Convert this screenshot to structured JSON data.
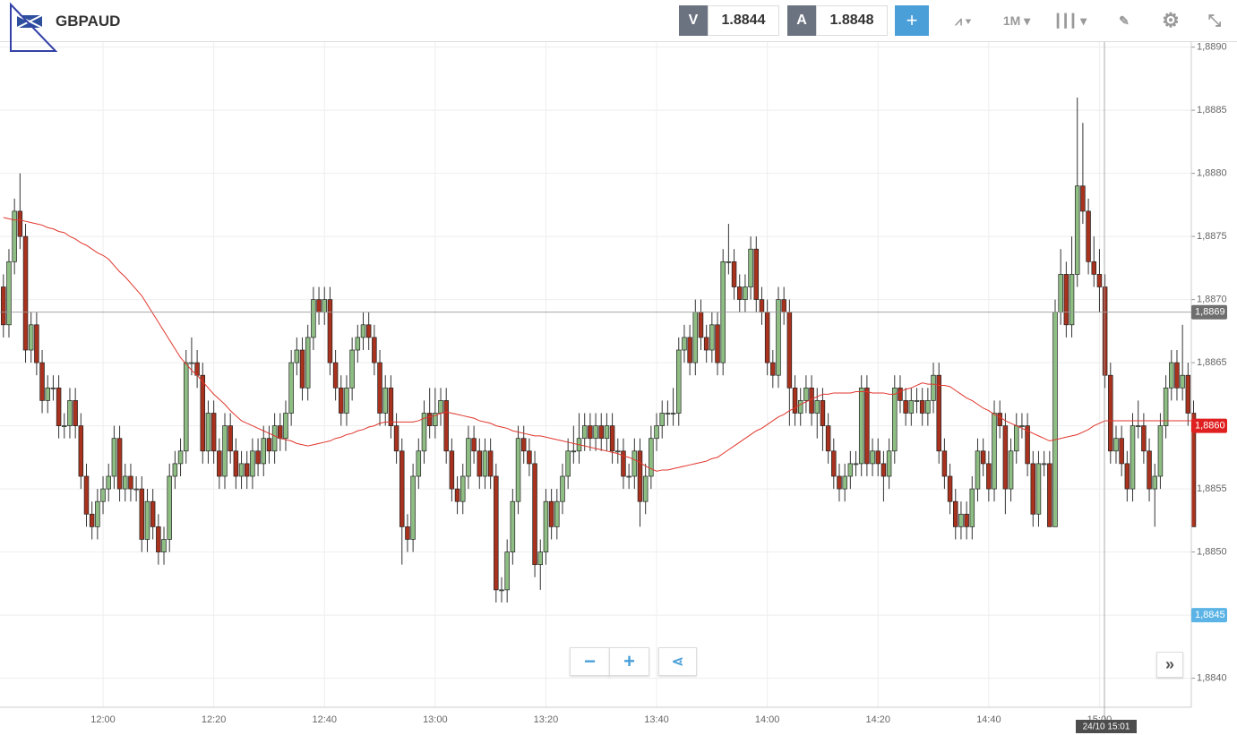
{
  "toolbar": {
    "symbol": "GBPAUD",
    "bid_label": "V",
    "bid": 1.8844,
    "ask_label": "A",
    "ask": 1.8848,
    "timeframe": "1M"
  },
  "chart_data": {
    "type": "candlestick",
    "grid": true,
    "up_color": "#8fbe84",
    "down_color": "#a8321e",
    "categories": [
      null,
      null,
      null,
      null,
      null,
      null,
      null,
      null,
      null,
      null,
      null,
      null,
      null,
      null,
      null,
      null,
      null,
      null,
      "12:00",
      null,
      null,
      null,
      null,
      null,
      null,
      null,
      null,
      null,
      null,
      null,
      null,
      null,
      null,
      null,
      null,
      null,
      null,
      null,
      "12:20",
      null,
      null,
      null,
      null,
      null,
      null,
      null,
      null,
      null,
      null,
      null,
      null,
      null,
      null,
      null,
      null,
      null,
      null,
      null,
      "12:40",
      null,
      null,
      null,
      null,
      null,
      null,
      null,
      null,
      null,
      null,
      null,
      null,
      null,
      null,
      null,
      null,
      null,
      null,
      null,
      "13:00",
      null,
      null,
      null,
      null,
      null,
      null,
      null,
      null,
      null,
      null,
      null,
      null,
      null,
      null,
      null,
      null,
      null,
      null,
      null,
      "13:20",
      null,
      null,
      null,
      null,
      null,
      null,
      null,
      null,
      null,
      null,
      null,
      null,
      null,
      null,
      null,
      null,
      null,
      null,
      null,
      "13:40",
      null,
      null,
      null,
      null,
      null,
      null,
      null,
      null,
      null,
      null,
      null,
      null,
      null,
      null,
      null,
      null,
      null,
      null,
      null,
      "14:00",
      null,
      null,
      null,
      null,
      null,
      null,
      null,
      null,
      null,
      null,
      null,
      null,
      null,
      null,
      null,
      null,
      null,
      null,
      null,
      "14:20",
      null,
      null,
      null,
      null,
      null,
      null,
      null,
      null,
      null,
      null,
      null,
      null,
      null,
      null,
      null,
      null,
      null,
      null,
      null,
      "14:40",
      null,
      null,
      null,
      null,
      null,
      null,
      null,
      null,
      null,
      null,
      null,
      null,
      null,
      null,
      null,
      null,
      null,
      null,
      null,
      "15:00",
      null,
      null,
      null,
      null,
      null,
      null,
      null,
      null,
      null,
      null,
      null,
      null,
      null,
      null,
      null,
      null,
      null
    ],
    "open": [
      1.8871,
      1.8868,
      1.8873,
      1.8877,
      1.8875,
      1.8866,
      1.8868,
      1.8865,
      1.8862,
      1.8863,
      1.8863,
      1.886,
      1.886,
      1.8862,
      1.886,
      1.8856,
      1.8853,
      1.8852,
      1.8854,
      1.8855,
      1.8856,
      1.8859,
      1.8855,
      1.8856,
      1.8855,
      1.8855,
      1.8851,
      1.8854,
      1.8852,
      1.885,
      1.8851,
      1.8856,
      1.8857,
      1.8858,
      1.8865,
      1.8865,
      1.8864,
      1.8858,
      1.8861,
      1.8858,
      1.8856,
      1.886,
      1.8858,
      1.8856,
      1.8857,
      1.8856,
      1.8858,
      1.8857,
      1.8859,
      1.8858,
      1.886,
      1.8859,
      1.8861,
      1.8865,
      1.8866,
      1.8863,
      1.8867,
      1.887,
      1.8869,
      1.887,
      1.8865,
      1.8863,
      1.8861,
      1.8863,
      1.8866,
      1.8867,
      1.8868,
      1.8867,
      1.8865,
      1.8861,
      1.8863,
      1.886,
      1.8858,
      1.8852,
      1.8851,
      1.8856,
      1.8858,
      1.8861,
      1.886,
      1.8861,
      1.8862,
      1.8858,
      1.8855,
      1.8854,
      1.8856,
      1.8859,
      1.8858,
      1.8856,
      1.8858,
      1.8856,
      1.8847,
      1.8847,
      1.885,
      1.8854,
      1.8859,
      1.8858,
      1.8857,
      1.8849,
      1.885,
      1.8854,
      1.8852,
      1.8854,
      1.8856,
      1.8858,
      1.8858,
      1.8859,
      1.886,
      1.8859,
      1.886,
      1.8859,
      1.886,
      1.8858,
      1.8858,
      1.8856,
      1.8856,
      1.8858,
      1.8854,
      1.8856,
      1.8859,
      1.886,
      1.8861,
      1.8861,
      1.8861,
      1.8866,
      1.8867,
      1.8865,
      1.8869,
      1.8867,
      1.8866,
      1.8868,
      1.8865,
      1.8873,
      1.8873,
      1.8871,
      1.887,
      1.8871,
      1.8874,
      1.887,
      1.8869,
      1.8865,
      1.8864,
      1.887,
      1.8869,
      1.8863,
      1.8861,
      1.8862,
      1.8863,
      1.8861,
      1.8862,
      1.886,
      1.8858,
      1.8856,
      1.8855,
      1.8856,
      1.8857,
      1.8857,
      1.8863,
      1.8857,
      1.8858,
      1.8857,
      1.8856,
      1.8858,
      1.8863,
      1.8862,
      1.8861,
      1.8862,
      1.8862,
      1.8861,
      1.8862,
      1.8864,
      1.8858,
      1.8856,
      1.8854,
      1.8852,
      1.8853,
      1.8852,
      1.8855,
      1.8858,
      1.8857,
      1.8855,
      1.8861,
      1.886,
      1.8855,
      1.8858,
      1.886,
      1.886,
      1.8857,
      1.8853,
      1.8857,
      1.8857,
      1.8852,
      1.8869,
      1.8872,
      1.8868,
      1.8872,
      1.8879,
      1.8877,
      1.8873,
      1.8872,
      1.8871,
      1.8864,
      1.8858,
      1.8859,
      1.8857,
      1.8855,
      1.886,
      1.886,
      1.8858,
      1.8855,
      1.8856,
      1.886,
      1.8863,
      1.8865,
      1.8863,
      1.8864,
      1.8861
    ],
    "high": [
      1.8872,
      1.8874,
      1.8878,
      1.888,
      1.8876,
      1.8869,
      1.8869,
      1.8866,
      1.8864,
      1.8864,
      1.8864,
      1.8861,
      1.8863,
      1.8863,
      1.8861,
      1.8857,
      1.8854,
      1.8855,
      1.8856,
      1.8857,
      1.886,
      1.886,
      1.8857,
      1.8857,
      1.8856,
      1.8856,
      1.8855,
      1.8855,
      1.8853,
      1.8852,
      1.8857,
      1.8858,
      1.8859,
      1.8866,
      1.8867,
      1.8866,
      1.8865,
      1.8862,
      1.8862,
      1.8859,
      1.8861,
      1.8861,
      1.8859,
      1.8858,
      1.8858,
      1.8859,
      1.8859,
      1.886,
      1.886,
      1.8861,
      1.8861,
      1.8862,
      1.8866,
      1.8867,
      1.8867,
      1.8868,
      1.8871,
      1.8871,
      1.8871,
      1.8871,
      1.8866,
      1.8864,
      1.8864,
      1.8867,
      1.8868,
      1.8869,
      1.8869,
      1.8868,
      1.8866,
      1.8864,
      1.8864,
      1.8861,
      1.8859,
      1.8853,
      1.8857,
      1.8859,
      1.8862,
      1.8863,
      1.8863,
      1.8863,
      1.8863,
      1.8859,
      1.8856,
      1.8857,
      1.886,
      1.886,
      1.8859,
      1.8859,
      1.8859,
      1.8857,
      1.8848,
      1.8851,
      1.8855,
      1.886,
      1.886,
      1.8859,
      1.8858,
      1.8851,
      1.8855,
      1.8855,
      1.8855,
      1.8857,
      1.8859,
      1.886,
      1.8861,
      1.8861,
      1.8861,
      1.8861,
      1.8861,
      1.8861,
      1.8861,
      1.8859,
      1.8859,
      1.8857,
      1.8859,
      1.8859,
      1.8857,
      1.886,
      1.8861,
      1.8862,
      1.8862,
      1.8863,
      1.8867,
      1.8868,
      1.8868,
      1.887,
      1.887,
      1.8868,
      1.8869,
      1.8869,
      1.8874,
      1.8876,
      1.8874,
      1.8872,
      1.8872,
      1.8875,
      1.8875,
      1.8871,
      1.887,
      1.8866,
      1.8871,
      1.8871,
      1.887,
      1.8864,
      1.8863,
      1.8864,
      1.8864,
      1.8863,
      1.8863,
      1.8861,
      1.8859,
      1.8857,
      1.8857,
      1.8858,
      1.8858,
      1.8864,
      1.8864,
      1.8859,
      1.8859,
      1.8858,
      1.8859,
      1.8864,
      1.8864,
      1.8863,
      1.8863,
      1.8863,
      1.8863,
      1.8863,
      1.8865,
      1.8865,
      1.8859,
      1.8857,
      1.8855,
      1.8854,
      1.8854,
      1.8856,
      1.8859,
      1.8859,
      1.8858,
      1.8862,
      1.8862,
      1.8861,
      1.8859,
      1.8861,
      1.8861,
      1.8861,
      1.8858,
      1.8858,
      1.8858,
      1.8858,
      1.887,
      1.8874,
      1.8873,
      1.8875,
      1.8886,
      1.8884,
      1.8878,
      1.8875,
      1.8874,
      1.8872,
      1.8865,
      1.886,
      1.886,
      1.8858,
      1.8861,
      1.8862,
      1.8861,
      1.8859,
      1.8857,
      1.8861,
      1.8864,
      1.8866,
      1.8866,
      1.8868,
      1.8865,
      1.8862
    ],
    "low": [
      1.8867,
      1.8867,
      1.8872,
      1.8874,
      1.8865,
      1.8865,
      1.8864,
      1.8861,
      1.8861,
      1.8862,
      1.8859,
      1.8859,
      1.8859,
      1.8859,
      1.8855,
      1.8852,
      1.8851,
      1.8851,
      1.8853,
      1.8854,
      1.8855,
      1.8854,
      1.8854,
      1.8854,
      1.8854,
      1.885,
      1.885,
      1.8851,
      1.8849,
      1.8849,
      1.885,
      1.8855,
      1.8856,
      1.8857,
      1.8864,
      1.8863,
      1.8857,
      1.8857,
      1.8857,
      1.8855,
      1.8855,
      1.8857,
      1.8855,
      1.8855,
      1.8855,
      1.8855,
      1.8856,
      1.8856,
      1.8857,
      1.8857,
      1.8858,
      1.8858,
      1.886,
      1.8864,
      1.8862,
      1.8862,
      1.8866,
      1.8868,
      1.8868,
      1.8864,
      1.8862,
      1.886,
      1.886,
      1.8862,
      1.8865,
      1.8866,
      1.8866,
      1.8864,
      1.886,
      1.886,
      1.8859,
      1.8857,
      1.8849,
      1.885,
      1.885,
      1.8855,
      1.8857,
      1.8859,
      1.8859,
      1.886,
      1.8857,
      1.8854,
      1.8853,
      1.8853,
      1.8855,
      1.8857,
      1.8855,
      1.8855,
      1.8855,
      1.8846,
      1.8846,
      1.8846,
      1.8849,
      1.8853,
      1.8857,
      1.8856,
      1.8848,
      1.8847,
      1.8849,
      1.8851,
      1.8851,
      1.8853,
      1.8855,
      1.8857,
      1.8857,
      1.8858,
      1.8858,
      1.8858,
      1.8858,
      1.8858,
      1.8857,
      1.8857,
      1.8855,
      1.8855,
      1.8855,
      1.8852,
      1.8853,
      1.8855,
      1.8858,
      1.8859,
      1.886,
      1.886,
      1.886,
      1.8865,
      1.8864,
      1.8864,
      1.8866,
      1.8865,
      1.8865,
      1.8864,
      1.8864,
      1.8872,
      1.887,
      1.8869,
      1.8869,
      1.887,
      1.8869,
      1.8868,
      1.8864,
      1.8863,
      1.8863,
      1.8868,
      1.886,
      1.886,
      1.886,
      1.8861,
      1.886,
      1.8859,
      1.8858,
      1.8857,
      1.8855,
      1.8854,
      1.8854,
      1.8855,
      1.8856,
      1.8856,
      1.8856,
      1.8856,
      1.8856,
      1.8854,
      1.8855,
      1.8857,
      1.8861,
      1.886,
      1.886,
      1.8861,
      1.886,
      1.886,
      1.8861,
      1.8857,
      1.8855,
      1.8853,
      1.8851,
      1.8851,
      1.8851,
      1.8851,
      1.8854,
      1.8856,
      1.8854,
      1.8854,
      1.8859,
      1.8853,
      1.8854,
      1.8857,
      1.8859,
      1.8856,
      1.8852,
      1.8852,
      1.8856,
      1.8852,
      1.8852,
      1.8868,
      1.8867,
      1.8867,
      1.8871,
      1.8876,
      1.8872,
      1.8871,
      1.8869,
      1.8863,
      1.8857,
      1.8857,
      1.8856,
      1.8854,
      1.8854,
      1.8859,
      1.8857,
      1.8854,
      1.8852,
      1.8855,
      1.8859,
      1.8862,
      1.8862,
      1.8862,
      1.886,
      1.8852
    ],
    "close": [
      1.8868,
      1.8873,
      1.8877,
      1.8875,
      1.8866,
      1.8868,
      1.8865,
      1.8862,
      1.8863,
      1.8863,
      1.886,
      1.886,
      1.8862,
      1.886,
      1.8856,
      1.8853,
      1.8852,
      1.8854,
      1.8855,
      1.8856,
      1.8859,
      1.8855,
      1.8856,
      1.8855,
      1.8855,
      1.8851,
      1.8854,
      1.8852,
      1.885,
      1.8851,
      1.8856,
      1.8857,
      1.8858,
      1.8865,
      1.8865,
      1.8864,
      1.8858,
      1.8861,
      1.8858,
      1.8856,
      1.886,
      1.8858,
      1.8856,
      1.8857,
      1.8856,
      1.8858,
      1.8857,
      1.8859,
      1.8858,
      1.886,
      1.8859,
      1.8861,
      1.8865,
      1.8866,
      1.8863,
      1.8867,
      1.887,
      1.8869,
      1.887,
      1.8865,
      1.8863,
      1.8861,
      1.8863,
      1.8866,
      1.8867,
      1.8868,
      1.8867,
      1.8865,
      1.8861,
      1.8863,
      1.886,
      1.8858,
      1.8852,
      1.8851,
      1.8856,
      1.8858,
      1.8861,
      1.886,
      1.8861,
      1.8862,
      1.8858,
      1.8855,
      1.8854,
      1.8856,
      1.8859,
      1.8858,
      1.8856,
      1.8858,
      1.8856,
      1.8847,
      1.8847,
      1.885,
      1.8854,
      1.8859,
      1.8858,
      1.8857,
      1.8849,
      1.885,
      1.8854,
      1.8852,
      1.8854,
      1.8856,
      1.8858,
      1.8858,
      1.8859,
      1.886,
      1.8859,
      1.886,
      1.8859,
      1.886,
      1.8858,
      1.8858,
      1.8856,
      1.8856,
      1.8858,
      1.8854,
      1.8856,
      1.8859,
      1.886,
      1.8861,
      1.8861,
      1.8861,
      1.8866,
      1.8867,
      1.8865,
      1.8869,
      1.8867,
      1.8866,
      1.8868,
      1.8865,
      1.8873,
      1.8873,
      1.8871,
      1.887,
      1.8871,
      1.8874,
      1.887,
      1.8869,
      1.8865,
      1.8864,
      1.887,
      1.8869,
      1.8863,
      1.8861,
      1.8862,
      1.8863,
      1.8861,
      1.8862,
      1.886,
      1.8858,
      1.8856,
      1.8855,
      1.8856,
      1.8857,
      1.8857,
      1.8863,
      1.8857,
      1.8858,
      1.8857,
      1.8856,
      1.8858,
      1.8863,
      1.8862,
      1.8861,
      1.8862,
      1.8862,
      1.8861,
      1.8862,
      1.8864,
      1.8858,
      1.8856,
      1.8854,
      1.8852,
      1.8853,
      1.8852,
      1.8855,
      1.8858,
      1.8857,
      1.8855,
      1.8861,
      1.886,
      1.8855,
      1.8858,
      1.886,
      1.886,
      1.8857,
      1.8853,
      1.8857,
      1.8857,
      1.8852,
      1.8869,
      1.8872,
      1.8868,
      1.8872,
      1.8879,
      1.8877,
      1.8873,
      1.8872,
      1.8871,
      1.8864,
      1.8858,
      1.8859,
      1.8857,
      1.8855,
      1.886,
      1.886,
      1.8858,
      1.8855,
      1.8856,
      1.886,
      1.8863,
      1.8865,
      1.8863,
      1.8864,
      1.8861,
      1.8852
    ],
    "ma": {
      "color": "#e0362c",
      "values": [
        1.88765,
        1.88764,
        1.88763,
        1.88763,
        1.88762,
        1.88761,
        1.8876,
        1.88759,
        1.88757,
        1.88756,
        1.88754,
        1.88753,
        1.8875,
        1.88748,
        1.88745,
        1.88743,
        1.8874,
        1.88737,
        1.88735,
        1.88732,
        1.88727,
        1.88722,
        1.88718,
        1.88713,
        1.88708,
        1.88703,
        1.88696,
        1.88689,
        1.88682,
        1.88675,
        1.88668,
        1.88661,
        1.88654,
        1.88649,
        1.88644,
        1.8864,
        1.88635,
        1.8863,
        1.88625,
        1.88621,
        1.88617,
        1.88612,
        1.88608,
        1.88604,
        1.88602,
        1.886,
        1.88598,
        1.88596,
        1.88594,
        1.88592,
        1.8859,
        1.88589,
        1.88588,
        1.88586,
        1.88585,
        1.88584,
        1.88585,
        1.88586,
        1.88587,
        1.88588,
        1.8859,
        1.88591,
        1.88593,
        1.88594,
        1.88596,
        1.88597,
        1.88599,
        1.886,
        1.88602,
        1.88603,
        1.88603,
        1.88603,
        1.88603,
        1.88603,
        1.88603,
        1.88604,
        1.88606,
        1.88607,
        1.88608,
        1.8861,
        1.88611,
        1.8861,
        1.88609,
        1.88608,
        1.88607,
        1.88606,
        1.88604,
        1.88603,
        1.88602,
        1.886,
        1.88599,
        1.88598,
        1.88596,
        1.88595,
        1.88594,
        1.88593,
        1.88592,
        1.88592,
        1.88591,
        1.8859,
        1.88589,
        1.88588,
        1.88587,
        1.88586,
        1.88585,
        1.88584,
        1.88583,
        1.88582,
        1.88581,
        1.8858,
        1.88579,
        1.88578,
        1.88576,
        1.88575,
        1.88573,
        1.88571,
        1.88568,
        1.88566,
        1.88564,
        1.88565,
        1.88565,
        1.88566,
        1.88567,
        1.88568,
        1.88569,
        1.8857,
        1.88571,
        1.88572,
        1.88574,
        1.88575,
        1.88578,
        1.88581,
        1.88584,
        1.88587,
        1.8859,
        1.88593,
        1.88596,
        1.88598,
        1.88601,
        1.88604,
        1.88607,
        1.88609,
        1.88612,
        1.88614,
        1.88617,
        1.88619,
        1.88621,
        1.88623,
        1.88625,
        1.88625,
        1.88626,
        1.88626,
        1.88626,
        1.88626,
        1.88627,
        1.88627,
        1.88627,
        1.88626,
        1.88626,
        1.88626,
        1.88625,
        1.88625,
        1.88627,
        1.88629,
        1.8863,
        1.88632,
        1.88634,
        1.88633,
        1.88633,
        1.88632,
        1.88632,
        1.88631,
        1.88628,
        1.88625,
        1.88622,
        1.8862,
        1.88617,
        1.88614,
        1.88612,
        1.88609,
        1.88607,
        1.88604,
        1.88602,
        1.886,
        1.88598,
        1.88596,
        1.88594,
        1.88592,
        1.8859,
        1.88588,
        1.88589,
        1.8859,
        1.88591,
        1.88592,
        1.88593,
        1.88595,
        1.88597,
        1.886,
        1.88602,
        1.88604,
        1.88604,
        1.88604,
        1.88604,
        1.88604,
        1.88604,
        1.88604,
        1.88604,
        1.88604,
        1.88604,
        1.88604,
        1.88604,
        1.88604,
        1.88604,
        1.88604,
        1.88604,
        1.88604
      ]
    },
    "ylim": [
      1.88377,
      1.88904
    ],
    "yticks": [
      {
        "value": 1.889,
        "label": "1,8890"
      },
      {
        "value": 1.8885,
        "label": "1,8885"
      },
      {
        "value": 1.888,
        "label": "1,8880"
      },
      {
        "value": 1.8875,
        "label": "1,8875"
      },
      {
        "value": 1.887,
        "label": "1,8870"
      },
      {
        "value": 1.8865,
        "label": "1,8865"
      },
      {
        "value": 1.886,
        "label": "1,8860"
      },
      {
        "value": 1.8855,
        "label": "1,8855"
      },
      {
        "value": 1.885,
        "label": "1,8850"
      },
      {
        "value": 1.8845,
        "label": "1,8845"
      },
      {
        "value": 1.884,
        "label": "1,8840"
      }
    ],
    "price_labels": [
      {
        "value": 1.8869,
        "label": "1,8869",
        "color": "#6e6e6e"
      },
      {
        "value": 1.886,
        "label": "1,8860",
        "color": "#e02020"
      },
      {
        "value": 1.8845,
        "label": "1,8845",
        "color": "#5bb4e5"
      }
    ],
    "crosshair": {
      "label": "24/10 15:01"
    }
  }
}
